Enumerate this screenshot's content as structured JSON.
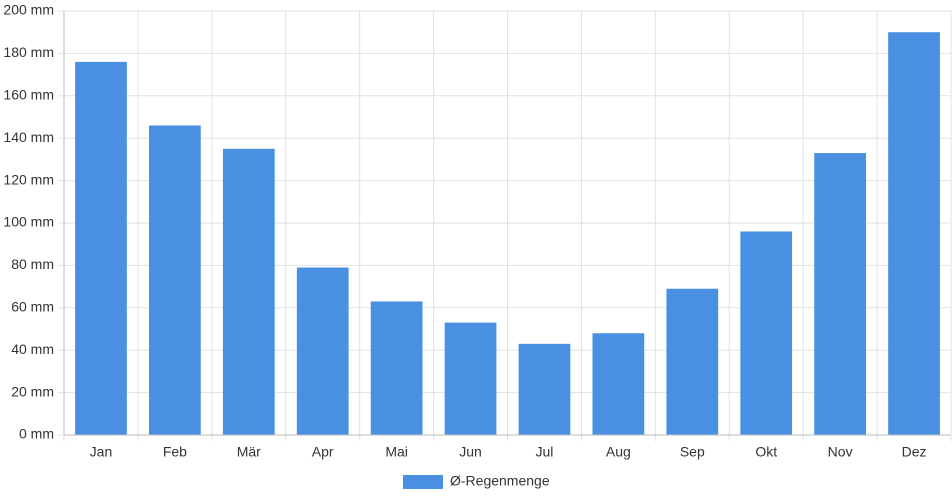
{
  "chart_data": {
    "type": "bar",
    "categories": [
      "Jan",
      "Feb",
      "Mär",
      "Apr",
      "Mai",
      "Jun",
      "Jul",
      "Aug",
      "Sep",
      "Okt",
      "Nov",
      "Dez"
    ],
    "series": [
      {
        "name": "Ø-Regenmenge",
        "color": "#4a90e2",
        "values": [
          176,
          146,
          135,
          79,
          63,
          53,
          43,
          48,
          69,
          96,
          133,
          190
        ]
      }
    ],
    "ylim": [
      0,
      200
    ],
    "yticks": [
      {
        "value": 0,
        "label": "0 mm"
      },
      {
        "value": 20,
        "label": "20 mm"
      },
      {
        "value": 40,
        "label": "40 mm"
      },
      {
        "value": 60,
        "label": "60 mm"
      },
      {
        "value": 80,
        "label": "80 mm"
      },
      {
        "value": 100,
        "label": "100 mm"
      },
      {
        "value": 120,
        "label": "120 mm"
      },
      {
        "value": 140,
        "label": "140 mm"
      },
      {
        "value": 160,
        "label": "160 mm"
      },
      {
        "value": 180,
        "label": "180 mm"
      },
      {
        "value": 200,
        "label": "200 mm"
      }
    ],
    "grid": true,
    "legend": "bottom"
  }
}
